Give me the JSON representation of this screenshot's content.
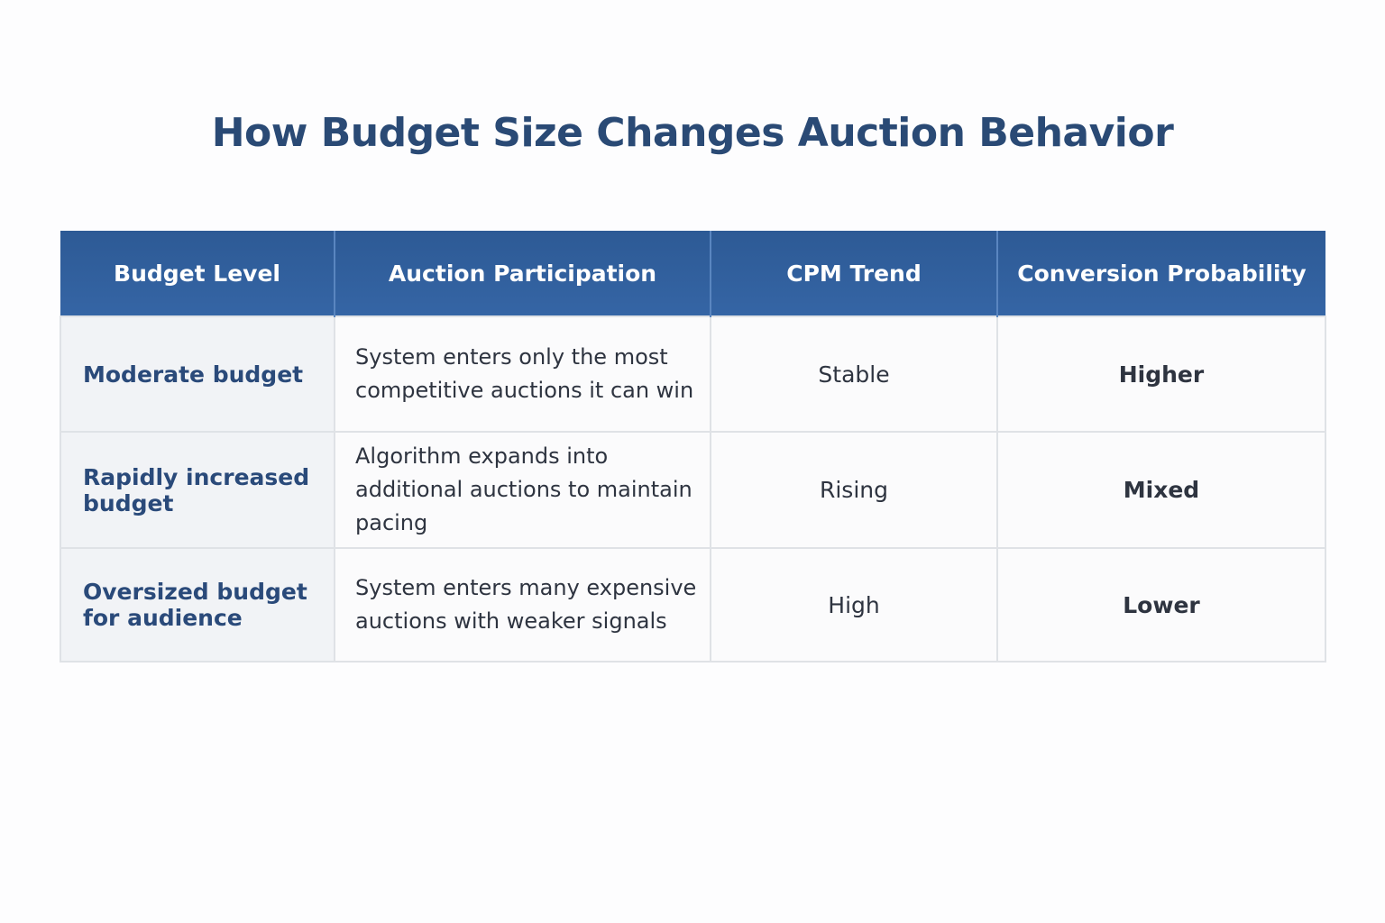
{
  "title": "How Budget Size Changes Auction Behavior",
  "chart_data": {
    "type": "table",
    "title": "How Budget Size Changes Auction Behavior",
    "columns": [
      "Budget Level",
      "Auction Participation",
      "CPM Trend",
      "Conversion Probability"
    ],
    "rows": [
      [
        "Moderate budget",
        "System enters only the most competitive auctions it can win",
        "Stable",
        "Higher"
      ],
      [
        "Rapidly increased budget",
        "Algorithm expands into additional auctions to maintain pacing",
        "Rising",
        "Mixed"
      ],
      [
        "Oversized budget for audience",
        "System enters many expensive auctions with weaker signals",
        "High",
        "Lower"
      ]
    ],
    "colors": {
      "header": "#2f5e9c",
      "title": "#2a4a75",
      "first_column_text": "#2a4a7a"
    }
  }
}
